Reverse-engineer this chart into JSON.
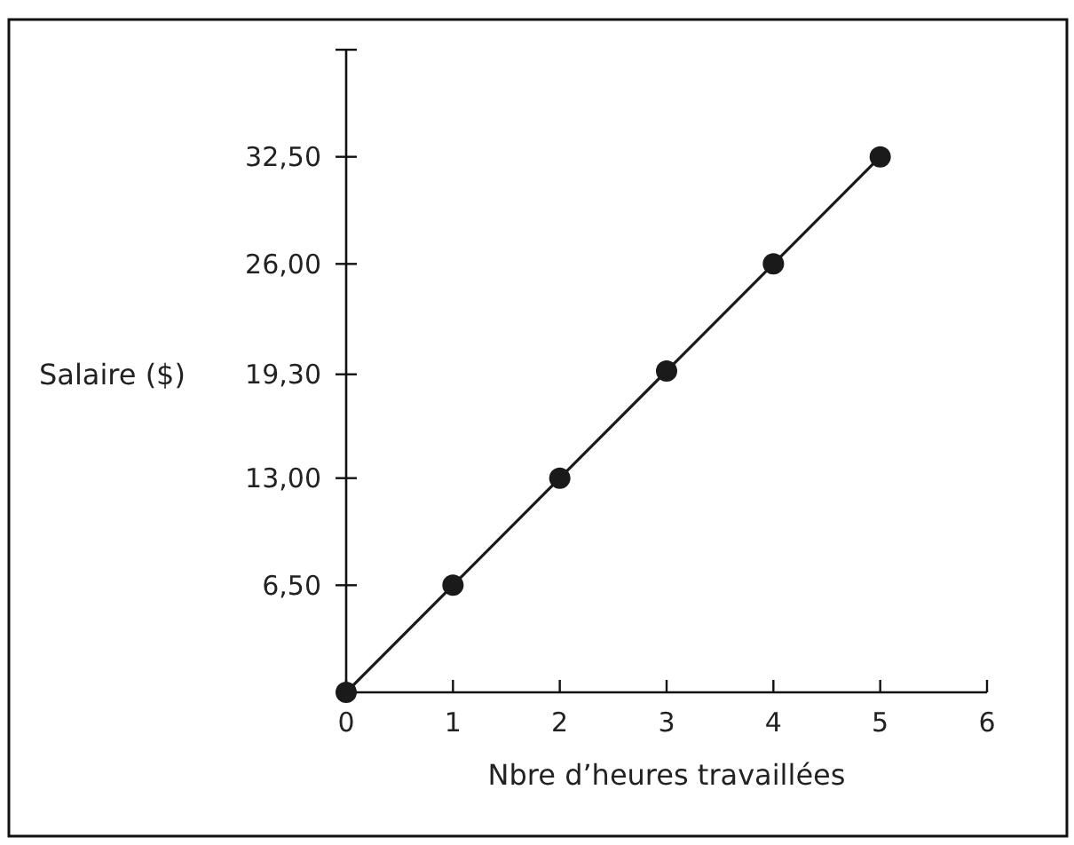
{
  "chart_data": {
    "type": "line",
    "xlabel": "Nbre d’heures travaillées",
    "ylabel": "Salaire ($)",
    "x": [
      0,
      1,
      2,
      3,
      4,
      5
    ],
    "series": [
      {
        "color": "#1a1a1a",
        "values": [
          0,
          6.5,
          13,
          19.5,
          26,
          32.5
        ]
      }
    ],
    "xlim": [
      0,
      6
    ],
    "xticks": [
      0,
      1,
      2,
      3,
      4,
      5,
      6
    ],
    "ylim": [
      0,
      39
    ],
    "yticks": [
      {
        "value": 6.5,
        "label": "6,50"
      },
      {
        "value": 13,
        "label": "13,00"
      },
      {
        "value": 19.3,
        "label": "19,30"
      },
      {
        "value": 26,
        "label": "26,00"
      },
      {
        "value": 32.5,
        "label": "32,50"
      },
      {
        "value": 39,
        "label": null
      }
    ],
    "marker": "circle",
    "line_style": "solid",
    "grid": false
  }
}
